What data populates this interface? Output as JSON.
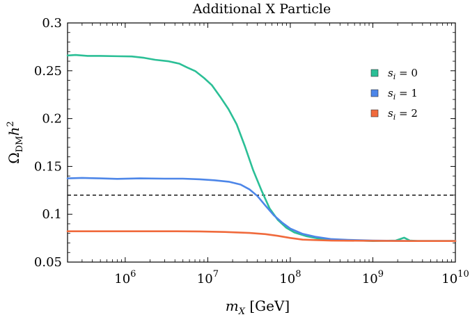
{
  "chart_data": {
    "type": "line",
    "title": "Additional X Particle",
    "xlabel": "m_X [GeV]",
    "ylabel": "Ω_DM h²",
    "xscale": "log",
    "xlim": [
      200000,
      10000000000
    ],
    "ylim": [
      0.05,
      0.3
    ],
    "x_ticks": [
      {
        "value": 1000000,
        "base": "10",
        "exp": "6"
      },
      {
        "value": 10000000,
        "base": "10",
        "exp": "7"
      },
      {
        "value": 100000000,
        "base": "10",
        "exp": "8"
      },
      {
        "value": 1000000000,
        "base": "10",
        "exp": "9"
      },
      {
        "value": 10000000000,
        "base": "10",
        "exp": "10"
      }
    ],
    "y_ticks": [
      {
        "value": 0.05,
        "label": "0.05"
      },
      {
        "value": 0.1,
        "label": "0.1"
      },
      {
        "value": 0.15,
        "label": "0.15"
      },
      {
        "value": 0.2,
        "label": "0.2"
      },
      {
        "value": 0.25,
        "label": "0.25"
      },
      {
        "value": 0.3,
        "label": "0.3"
      }
    ],
    "reference_line": {
      "y": 0.12,
      "style": "dashed",
      "color": "#000000"
    },
    "legend_position": "upper-right",
    "grid": false,
    "series": [
      {
        "name": "s_i = 0",
        "color": "#2bbf96",
        "points": [
          [
            200000,
            0.266
          ],
          [
            250000,
            0.2665
          ],
          [
            350000,
            0.2655
          ],
          [
            500000,
            0.2655
          ],
          [
            800000,
            0.2652
          ],
          [
            1200000,
            0.265
          ],
          [
            1700000,
            0.2635
          ],
          [
            2300000,
            0.2615
          ],
          [
            3300000,
            0.26
          ],
          [
            4500000,
            0.2575
          ],
          [
            5600000,
            0.2535
          ],
          [
            7100000,
            0.2495
          ],
          [
            9000000,
            0.2425
          ],
          [
            11200000,
            0.235
          ],
          [
            14100000,
            0.223
          ],
          [
            17800000,
            0.21
          ],
          [
            22400000,
            0.194
          ],
          [
            28200000,
            0.171
          ],
          [
            35500000,
            0.146
          ],
          [
            44700000,
            0.125
          ],
          [
            56200000,
            0.106
          ],
          [
            70800000,
            0.094
          ],
          [
            89100000,
            0.086
          ],
          [
            112000000,
            0.081
          ],
          [
            158000000,
            0.077
          ],
          [
            224000000,
            0.0745
          ],
          [
            316000000,
            0.0735
          ],
          [
            500000000,
            0.073
          ],
          [
            1000000000,
            0.072
          ],
          [
            1900000000,
            0.0725
          ],
          [
            2400000000,
            0.0755
          ],
          [
            2800000000,
            0.0725
          ],
          [
            3500000000,
            0.072
          ],
          [
            5000000000,
            0.072
          ],
          [
            10000000000,
            0.072
          ]
        ]
      },
      {
        "name": "s_i = 1",
        "color": "#4d86e8",
        "points": [
          [
            200000,
            0.1375
          ],
          [
            300000,
            0.138
          ],
          [
            500000,
            0.1375
          ],
          [
            800000,
            0.137
          ],
          [
            1500000,
            0.1375
          ],
          [
            3000000,
            0.1372
          ],
          [
            5000000,
            0.1372
          ],
          [
            8000000,
            0.1365
          ],
          [
            12000000,
            0.1355
          ],
          [
            18000000,
            0.134
          ],
          [
            25000000,
            0.131
          ],
          [
            32000000,
            0.126
          ],
          [
            40000000,
            0.119
          ],
          [
            50000000,
            0.109
          ],
          [
            63000000,
            0.099
          ],
          [
            79000000,
            0.0915
          ],
          [
            100000000,
            0.085
          ],
          [
            141000000,
            0.0795
          ],
          [
            200000000,
            0.0765
          ],
          [
            316000000,
            0.074
          ],
          [
            500000000,
            0.0732
          ],
          [
            1000000000,
            0.0725
          ],
          [
            3000000000,
            0.072
          ],
          [
            10000000000,
            0.072
          ]
        ]
      },
      {
        "name": "s_i = 2",
        "color": "#f06a3c",
        "points": [
          [
            200000,
            0.0822
          ],
          [
            500000,
            0.0822
          ],
          [
            1000000,
            0.0822
          ],
          [
            2000000,
            0.0822
          ],
          [
            4000000,
            0.0822
          ],
          [
            8000000,
            0.082
          ],
          [
            16000000,
            0.0815
          ],
          [
            32000000,
            0.0805
          ],
          [
            50000000,
            0.0792
          ],
          [
            70000000,
            0.0775
          ],
          [
            100000000,
            0.0752
          ],
          [
            141000000,
            0.0735
          ],
          [
            200000000,
            0.073
          ],
          [
            316000000,
            0.0725
          ],
          [
            1000000000,
            0.0722
          ],
          [
            3000000000,
            0.072
          ],
          [
            10000000000,
            0.072
          ]
        ]
      }
    ]
  },
  "legend": {
    "items": [
      {
        "label": "= 0",
        "color": "#2bbf96"
      },
      {
        "label": "= 1",
        "color": "#4d86e8"
      },
      {
        "label": "= 2",
        "color": "#f06a3c"
      }
    ]
  }
}
